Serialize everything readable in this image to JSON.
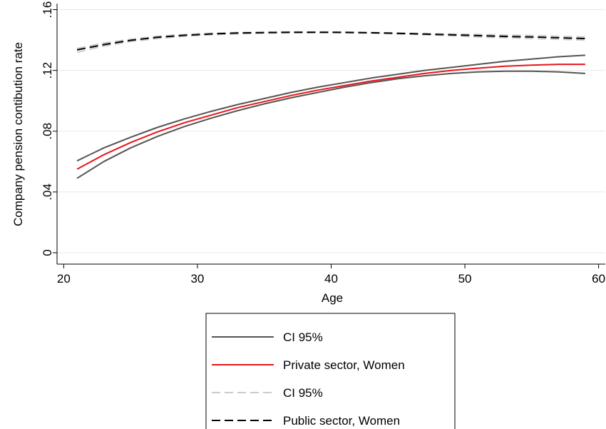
{
  "chart_data": {
    "type": "line",
    "xlabel": "Age",
    "ylabel": "Company pension contibution rate",
    "xlim": [
      19.5,
      60.5
    ],
    "ylim": [
      -0.0075,
      0.164
    ],
    "xticks": [
      20,
      30,
      40,
      50,
      60
    ],
    "yticks": [
      0,
      0.04,
      0.08,
      0.12,
      0.16
    ],
    "xtick_labels": [
      "20",
      "30",
      "40",
      "50",
      "60"
    ],
    "ytick_labels": [
      "0",
      ".04",
      ".08",
      ".12",
      ".16"
    ],
    "grid": "horizontal",
    "legend_position": "bottom",
    "x": [
      21,
      23,
      25,
      27,
      29,
      31,
      33,
      35,
      37,
      39,
      41,
      43,
      45,
      47,
      49,
      51,
      53,
      55,
      57,
      59
    ],
    "series": [
      {
        "name": "CI 95%",
        "color": "#555555",
        "dash": "solid",
        "values": [
          0.0605,
          0.069,
          0.076,
          0.0825,
          0.088,
          0.093,
          0.0975,
          0.1015,
          0.1055,
          0.109,
          0.112,
          0.115,
          0.1175,
          0.12,
          0.122,
          0.124,
          0.126,
          0.1275,
          0.129,
          0.13
        ]
      },
      {
        "name": "",
        "color": "#555555",
        "dash": "solid",
        "values": [
          0.049,
          0.06,
          0.069,
          0.0765,
          0.083,
          0.0885,
          0.0935,
          0.098,
          0.102,
          0.1055,
          0.109,
          0.112,
          0.1145,
          0.1165,
          0.118,
          0.119,
          0.1195,
          0.1195,
          0.119,
          0.118
        ]
      },
      {
        "name": "Private sector, Women",
        "color": "#e8141a",
        "dash": "solid",
        "values": [
          0.055,
          0.0645,
          0.0725,
          0.0795,
          0.0855,
          0.0905,
          0.0955,
          0.0995,
          0.1035,
          0.107,
          0.11,
          0.113,
          0.1155,
          0.118,
          0.12,
          0.1215,
          0.1228,
          0.1235,
          0.124,
          0.124
        ]
      },
      {
        "name": "CI 95%",
        "color": "#cccccc",
        "dash": "dashed",
        "values": [
          0.132,
          0.136,
          0.139,
          0.141,
          0.1425,
          0.1435,
          0.144,
          0.1445,
          0.1447,
          0.1448,
          0.1447,
          0.1445,
          0.144,
          0.1435,
          0.1428,
          0.142,
          0.1415,
          0.141,
          0.1405,
          0.14
        ]
      },
      {
        "name": "",
        "color": "#cccccc",
        "dash": "dashed",
        "values": [
          0.1345,
          0.138,
          0.1405,
          0.1425,
          0.1437,
          0.1445,
          0.145,
          0.1453,
          0.1454,
          0.1454,
          0.1453,
          0.145,
          0.1447,
          0.1443,
          0.144,
          0.1437,
          0.1433,
          0.143,
          0.1425,
          0.142
        ]
      },
      {
        "name": "Public sector, Women",
        "color": "#000000",
        "dash": "dashed",
        "values": [
          0.1335,
          0.137,
          0.1398,
          0.1418,
          0.1431,
          0.144,
          0.1446,
          0.1449,
          0.1451,
          0.1451,
          0.145,
          0.1448,
          0.1444,
          0.1439,
          0.1434,
          0.1429,
          0.1424,
          0.142,
          0.1415,
          0.141
        ]
      }
    ],
    "legend": [
      {
        "label": "CI 95%",
        "color": "#555555",
        "dash": "solid"
      },
      {
        "label": "Private sector, Women",
        "color": "#e8141a",
        "dash": "solid"
      },
      {
        "label": "CI 95%",
        "color": "#cccccc",
        "dash": "dashed"
      },
      {
        "label": "Public sector, Women",
        "color": "#000000",
        "dash": "dashed"
      }
    ]
  }
}
